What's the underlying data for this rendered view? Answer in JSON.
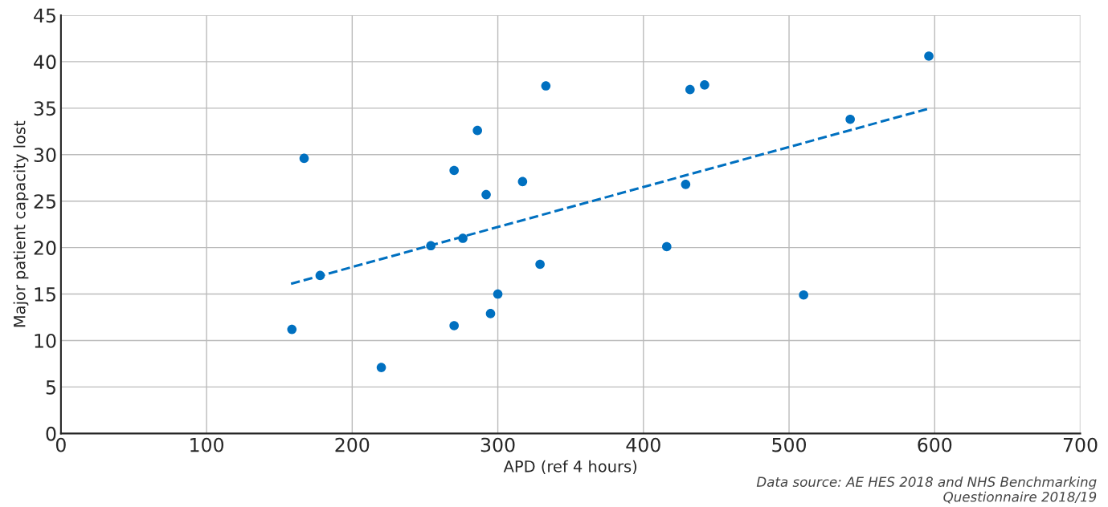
{
  "chart_data": {
    "type": "scatter",
    "xlabel": "APD (ref 4 hours)",
    "ylabel": "Major patient capacity lost",
    "annotations": [
      "Data source: AE HES 2018 and NHS Benchmarking\nQuestionnaire 2018/19"
    ],
    "series": [
      {
        "color": "#0070c0",
        "marker": "circle",
        "x": [
          158.6,
          167,
          178,
          220,
          254,
          270,
          270,
          276,
          286,
          292,
          295,
          300,
          317,
          329,
          333,
          416,
          429,
          432,
          442,
          510,
          542,
          596
        ],
        "values": [
          11.2,
          29.6,
          17.0,
          7.1,
          20.2,
          28.3,
          11.6,
          21.0,
          32.6,
          25.7,
          12.9,
          15.0,
          27.1,
          18.2,
          37.4,
          20.1,
          26.8,
          37.0,
          37.5,
          14.9,
          33.8,
          40.6
        ]
      },
      {
        "type": "line",
        "color": "#0070c0",
        "line_style": "dashed",
        "x": [
          158,
          597
        ],
        "values": [
          16.1,
          35.0
        ]
      }
    ],
    "xlim": [
      0,
      700
    ],
    "ylim": [
      0,
      45
    ],
    "xticks": [
      0,
      100,
      200,
      300,
      400,
      500,
      600,
      700
    ],
    "yticks": [
      0,
      5,
      10,
      15,
      20,
      25,
      30,
      35,
      40,
      45
    ],
    "grid": true
  }
}
